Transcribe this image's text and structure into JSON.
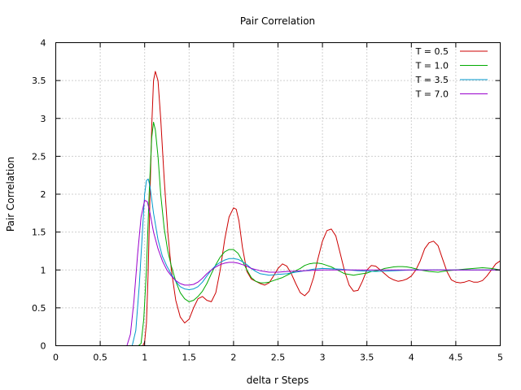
{
  "chart_data": {
    "type": "line",
    "title": "Pair Correlation",
    "xlabel": "delta r Steps",
    "ylabel": "Pair Correlation",
    "xlim": [
      0,
      5
    ],
    "ylim": [
      0,
      4
    ],
    "xticks": [
      0,
      0.5,
      1,
      1.5,
      2,
      2.5,
      3,
      3.5,
      4,
      4.5,
      5
    ],
    "xtick_labels": [
      "0",
      "0.5",
      "1",
      "1.5",
      "2",
      "2.5",
      "3",
      "3.5",
      "4",
      "4.5",
      "5"
    ],
    "yticks": [
      0,
      0.5,
      1,
      1.5,
      2,
      2.5,
      3,
      3.5,
      4
    ],
    "ytick_labels": [
      "0",
      "0.5",
      "1",
      "1.5",
      "2",
      "2.5",
      "3",
      "3.5",
      "4"
    ],
    "grid": true,
    "legend_position": "top-right",
    "series": [
      {
        "name": "T = 0.5",
        "color": "#cc0000",
        "x": [
          0,
          0.98,
          1.0,
          1.02,
          1.04,
          1.06,
          1.08,
          1.1,
          1.12,
          1.15,
          1.18,
          1.22,
          1.26,
          1.3,
          1.35,
          1.4,
          1.45,
          1.5,
          1.55,
          1.6,
          1.65,
          1.7,
          1.75,
          1.8,
          1.85,
          1.9,
          1.95,
          2.0,
          2.03,
          2.06,
          2.1,
          2.15,
          2.2,
          2.25,
          2.3,
          2.35,
          2.4,
          2.45,
          2.5,
          2.55,
          2.6,
          2.65,
          2.7,
          2.75,
          2.8,
          2.85,
          2.9,
          2.95,
          3.0,
          3.05,
          3.1,
          3.15,
          3.2,
          3.25,
          3.3,
          3.35,
          3.4,
          3.45,
          3.5,
          3.55,
          3.6,
          3.65,
          3.7,
          3.75,
          3.8,
          3.85,
          3.9,
          3.95,
          4.0,
          4.05,
          4.1,
          4.15,
          4.2,
          4.25,
          4.3,
          4.35,
          4.4,
          4.45,
          4.5,
          4.55,
          4.6,
          4.65,
          4.7,
          4.75,
          4.8,
          4.85,
          4.9,
          4.95,
          5.0
        ],
        "y": [
          0,
          0,
          0.05,
          0.3,
          1.0,
          2.0,
          2.9,
          3.5,
          3.62,
          3.5,
          3.0,
          2.2,
          1.5,
          1.0,
          0.6,
          0.38,
          0.3,
          0.35,
          0.5,
          0.62,
          0.65,
          0.6,
          0.58,
          0.7,
          1.0,
          1.4,
          1.7,
          1.82,
          1.8,
          1.65,
          1.3,
          0.98,
          0.88,
          0.85,
          0.82,
          0.8,
          0.83,
          0.92,
          1.02,
          1.08,
          1.05,
          0.95,
          0.82,
          0.7,
          0.66,
          0.72,
          0.9,
          1.15,
          1.38,
          1.52,
          1.54,
          1.45,
          1.22,
          0.98,
          0.8,
          0.72,
          0.73,
          0.85,
          1.0,
          1.06,
          1.05,
          1.0,
          0.95,
          0.9,
          0.87,
          0.85,
          0.86,
          0.88,
          0.92,
          1.0,
          1.12,
          1.28,
          1.36,
          1.38,
          1.32,
          1.15,
          0.98,
          0.87,
          0.84,
          0.83,
          0.84,
          0.86,
          0.84,
          0.84,
          0.86,
          0.92,
          1.0,
          1.08,
          1.12
        ]
      },
      {
        "name": "T = 1.0",
        "color": "#00aa00",
        "x": [
          0,
          0.93,
          0.96,
          0.99,
          1.02,
          1.05,
          1.08,
          1.1,
          1.12,
          1.15,
          1.18,
          1.22,
          1.26,
          1.3,
          1.35,
          1.4,
          1.45,
          1.5,
          1.55,
          1.6,
          1.65,
          1.7,
          1.75,
          1.8,
          1.85,
          1.9,
          1.95,
          2.0,
          2.05,
          2.1,
          2.15,
          2.2,
          2.25,
          2.3,
          2.35,
          2.4,
          2.45,
          2.5,
          2.55,
          2.6,
          2.65,
          2.7,
          2.75,
          2.8,
          2.85,
          2.9,
          2.95,
          3.0,
          3.05,
          3.1,
          3.15,
          3.2,
          3.25,
          3.3,
          3.35,
          3.4,
          3.45,
          3.5,
          3.55,
          3.6,
          3.65,
          3.7,
          3.75,
          3.8,
          3.85,
          3.9,
          3.95,
          4.0,
          4.1,
          4.2,
          4.3,
          4.4,
          4.5,
          4.6,
          4.7,
          4.8,
          4.9,
          5.0
        ],
        "y": [
          0,
          0,
          0.03,
          0.35,
          1.0,
          2.0,
          2.75,
          2.95,
          2.85,
          2.5,
          2.0,
          1.55,
          1.25,
          1.05,
          0.85,
          0.7,
          0.62,
          0.58,
          0.6,
          0.65,
          0.72,
          0.82,
          0.95,
          1.07,
          1.17,
          1.24,
          1.27,
          1.27,
          1.22,
          1.12,
          1.0,
          0.9,
          0.85,
          0.83,
          0.83,
          0.84,
          0.86,
          0.88,
          0.9,
          0.93,
          0.96,
          0.99,
          1.02,
          1.06,
          1.08,
          1.09,
          1.09,
          1.08,
          1.06,
          1.04,
          1.01,
          0.98,
          0.95,
          0.94,
          0.93,
          0.94,
          0.95,
          0.96,
          0.98,
          0.99,
          1.0,
          1.02,
          1.03,
          1.04,
          1.045,
          1.045,
          1.04,
          1.03,
          1.0,
          0.98,
          0.97,
          0.99,
          1.0,
          1.01,
          1.02,
          1.03,
          1.02,
          1.0
        ]
      },
      {
        "name": "T = 3.5",
        "color": "#0099cc",
        "x": [
          0,
          0.86,
          0.9,
          0.94,
          0.98,
          1.0,
          1.02,
          1.04,
          1.06,
          1.1,
          1.15,
          1.2,
          1.25,
          1.3,
          1.35,
          1.4,
          1.45,
          1.5,
          1.55,
          1.6,
          1.65,
          1.7,
          1.75,
          1.8,
          1.85,
          1.9,
          1.95,
          2.0,
          2.05,
          2.1,
          2.15,
          2.2,
          2.25,
          2.3,
          2.35,
          2.4,
          2.45,
          2.5,
          2.6,
          2.7,
          2.8,
          2.9,
          3.0,
          3.2,
          3.4,
          3.6,
          3.8,
          4.0,
          4.2,
          4.4,
          4.6,
          4.8,
          5.0
        ],
        "y": [
          0,
          0,
          0.2,
          0.8,
          1.6,
          2.0,
          2.18,
          2.2,
          2.1,
          1.75,
          1.4,
          1.18,
          1.05,
          0.94,
          0.85,
          0.78,
          0.75,
          0.74,
          0.75,
          0.78,
          0.84,
          0.92,
          1.0,
          1.06,
          1.1,
          1.13,
          1.15,
          1.15,
          1.14,
          1.11,
          1.07,
          1.02,
          0.98,
          0.95,
          0.94,
          0.93,
          0.935,
          0.94,
          0.95,
          0.97,
          0.99,
          1.01,
          1.02,
          1.01,
          0.99,
          0.98,
          0.99,
          1.0,
          1.0,
          1.0,
          1.0,
          1.0,
          1.0
        ]
      },
      {
        "name": "T = 7.0",
        "color": "#9900cc",
        "x": [
          0,
          0.8,
          0.84,
          0.88,
          0.92,
          0.96,
          1.0,
          1.03,
          1.06,
          1.1,
          1.15,
          1.2,
          1.25,
          1.3,
          1.35,
          1.4,
          1.45,
          1.5,
          1.55,
          1.6,
          1.65,
          1.7,
          1.75,
          1.8,
          1.85,
          1.9,
          1.95,
          2.0,
          2.05,
          2.1,
          2.15,
          2.2,
          2.3,
          2.4,
          2.5,
          2.6,
          2.8,
          3.0,
          3.2,
          3.4,
          3.6,
          3.8,
          4.0,
          4.2,
          4.4,
          4.6,
          4.8,
          5.0
        ],
        "y": [
          0,
          0,
          0.15,
          0.6,
          1.2,
          1.7,
          1.92,
          1.9,
          1.75,
          1.5,
          1.28,
          1.12,
          1.0,
          0.92,
          0.86,
          0.82,
          0.8,
          0.8,
          0.81,
          0.84,
          0.89,
          0.95,
          1.0,
          1.04,
          1.07,
          1.09,
          1.1,
          1.1,
          1.09,
          1.07,
          1.05,
          1.02,
          0.99,
          0.97,
          0.97,
          0.98,
          0.99,
          1.0,
          1.0,
          1.0,
          1.0,
          1.0,
          1.0,
          1.0,
          1.0,
          1.0,
          1.0,
          1.0
        ]
      }
    ]
  }
}
